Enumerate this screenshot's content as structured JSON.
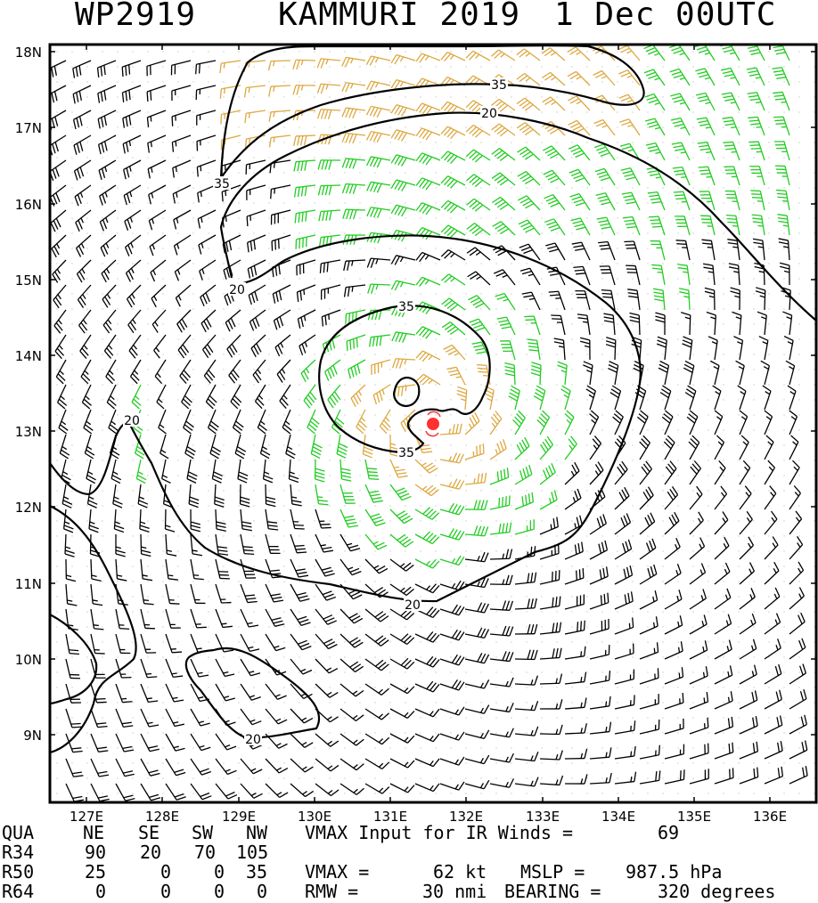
{
  "title": {
    "storm_id": "WP2919",
    "storm_name": "KAMMURI 2019",
    "date": "1 Dec 00UTC"
  },
  "map": {
    "lat_labels": [
      "18N",
      "17N",
      "16N",
      "15N",
      "14N",
      "13N",
      "12N",
      "11N",
      "10N",
      "9N"
    ],
    "lon_labels": [
      "127E",
      "128E",
      "129E",
      "130E",
      "131E",
      "132E",
      "133E",
      "134E",
      "135E",
      "136E"
    ],
    "contour_labels": [
      "35",
      "20",
      "35",
      "20",
      "35",
      "35",
      "20",
      "20",
      "20"
    ],
    "colors": {
      "below_34kt": "#000000",
      "34_to_50kt": "#22cc22",
      "above_50kt": "#dda840",
      "storm_center": "#ff3030"
    },
    "storm_center_icon": "tropical-cyclone-symbol"
  },
  "table": {
    "header": [
      "QUA",
      "NE",
      "SE",
      "SW",
      "NW"
    ],
    "rows": [
      [
        "R34",
        "90",
        "20",
        "70",
        "105"
      ],
      [
        "R50",
        "25",
        "0",
        "0",
        "35"
      ],
      [
        "R64",
        "0",
        "0",
        "0",
        "0"
      ]
    ]
  },
  "info": {
    "vmax_input_label": "VMAX Input for IR Winds =",
    "vmax_input_value": "69",
    "vmax_label": "VMAX =",
    "vmax_value": "62 kt",
    "mslp_label": "MSLP =",
    "mslp_value": "987.5 hPa",
    "rmw_label": "RMW =",
    "rmw_value": "30 nmi",
    "bearing_label": "BEARING =",
    "bearing_value": "320 degrees"
  }
}
